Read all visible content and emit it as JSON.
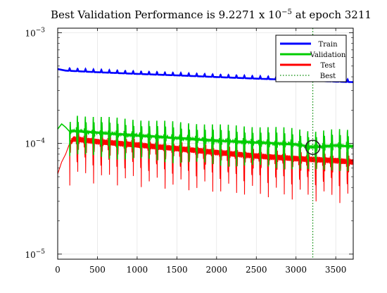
{
  "chart_data": {
    "type": "line",
    "title_prefix": "Best Validation Performance is 9.2271 x 10",
    "title_exp": "−5",
    "title_suffix": " at epoch 3211",
    "xlabel": "",
    "ylabel": "",
    "xlim": [
      0,
      3720
    ],
    "ylim": [
      9e-06,
      0.0011
    ],
    "yscale": "log",
    "grid": true,
    "legend_position": "top-right",
    "x_ticks": [
      0,
      500,
      1000,
      1500,
      2000,
      2500,
      3000,
      3500
    ],
    "y_ticks": [
      {
        "value": 0.001,
        "base": "10",
        "exp": "−3"
      },
      {
        "value": 0.0001,
        "base": "10",
        "exp": "−4"
      },
      {
        "value": 1e-05,
        "base": "10",
        "exp": "−5"
      }
    ],
    "best_epoch": 3211,
    "best_value": 9.2271e-05,
    "oscillation_period": 100,
    "series": [
      {
        "name": "Train",
        "color": "#0000ff",
        "style": "solid",
        "x": [
          0,
          100,
          500,
          1000,
          1500,
          2000,
          2500,
          3000,
          3500,
          3720
        ],
        "values": [
          0.00047,
          0.000455,
          0.00044,
          0.000425,
          0.000412,
          0.000398,
          0.000385,
          0.000374,
          0.000362,
          0.000358
        ]
      },
      {
        "name": "Validation",
        "color": "#00cc00",
        "style": "solid",
        "x": [
          0,
          50,
          100,
          150,
          200,
          500,
          1000,
          1500,
          2000,
          2500,
          3000,
          3211,
          3500,
          3720
        ],
        "values": [
          0.000135,
          0.00015,
          0.00014,
          0.000128,
          0.00013,
          0.000125,
          0.000118,
          0.000112,
          0.000106,
          0.000102,
          9.8e-05,
          9.23e-05,
          9.6e-05,
          9.4e-05
        ]
      },
      {
        "name": "Test",
        "color": "#ff0000",
        "style": "solid",
        "x": [
          0,
          50,
          100,
          150,
          200,
          500,
          1000,
          1500,
          2000,
          2500,
          3000,
          3500,
          3720
        ],
        "values": [
          5.3e-05,
          6.8e-05,
          8e-05,
          0.0001,
          0.00011,
          0.000104,
          9.7e-05,
          9e-05,
          8.3e-05,
          7.7e-05,
          7.3e-05,
          7e-05,
          6.8e-05
        ]
      },
      {
        "name": "Best",
        "color": "#008800",
        "style": "dotted"
      }
    ]
  }
}
